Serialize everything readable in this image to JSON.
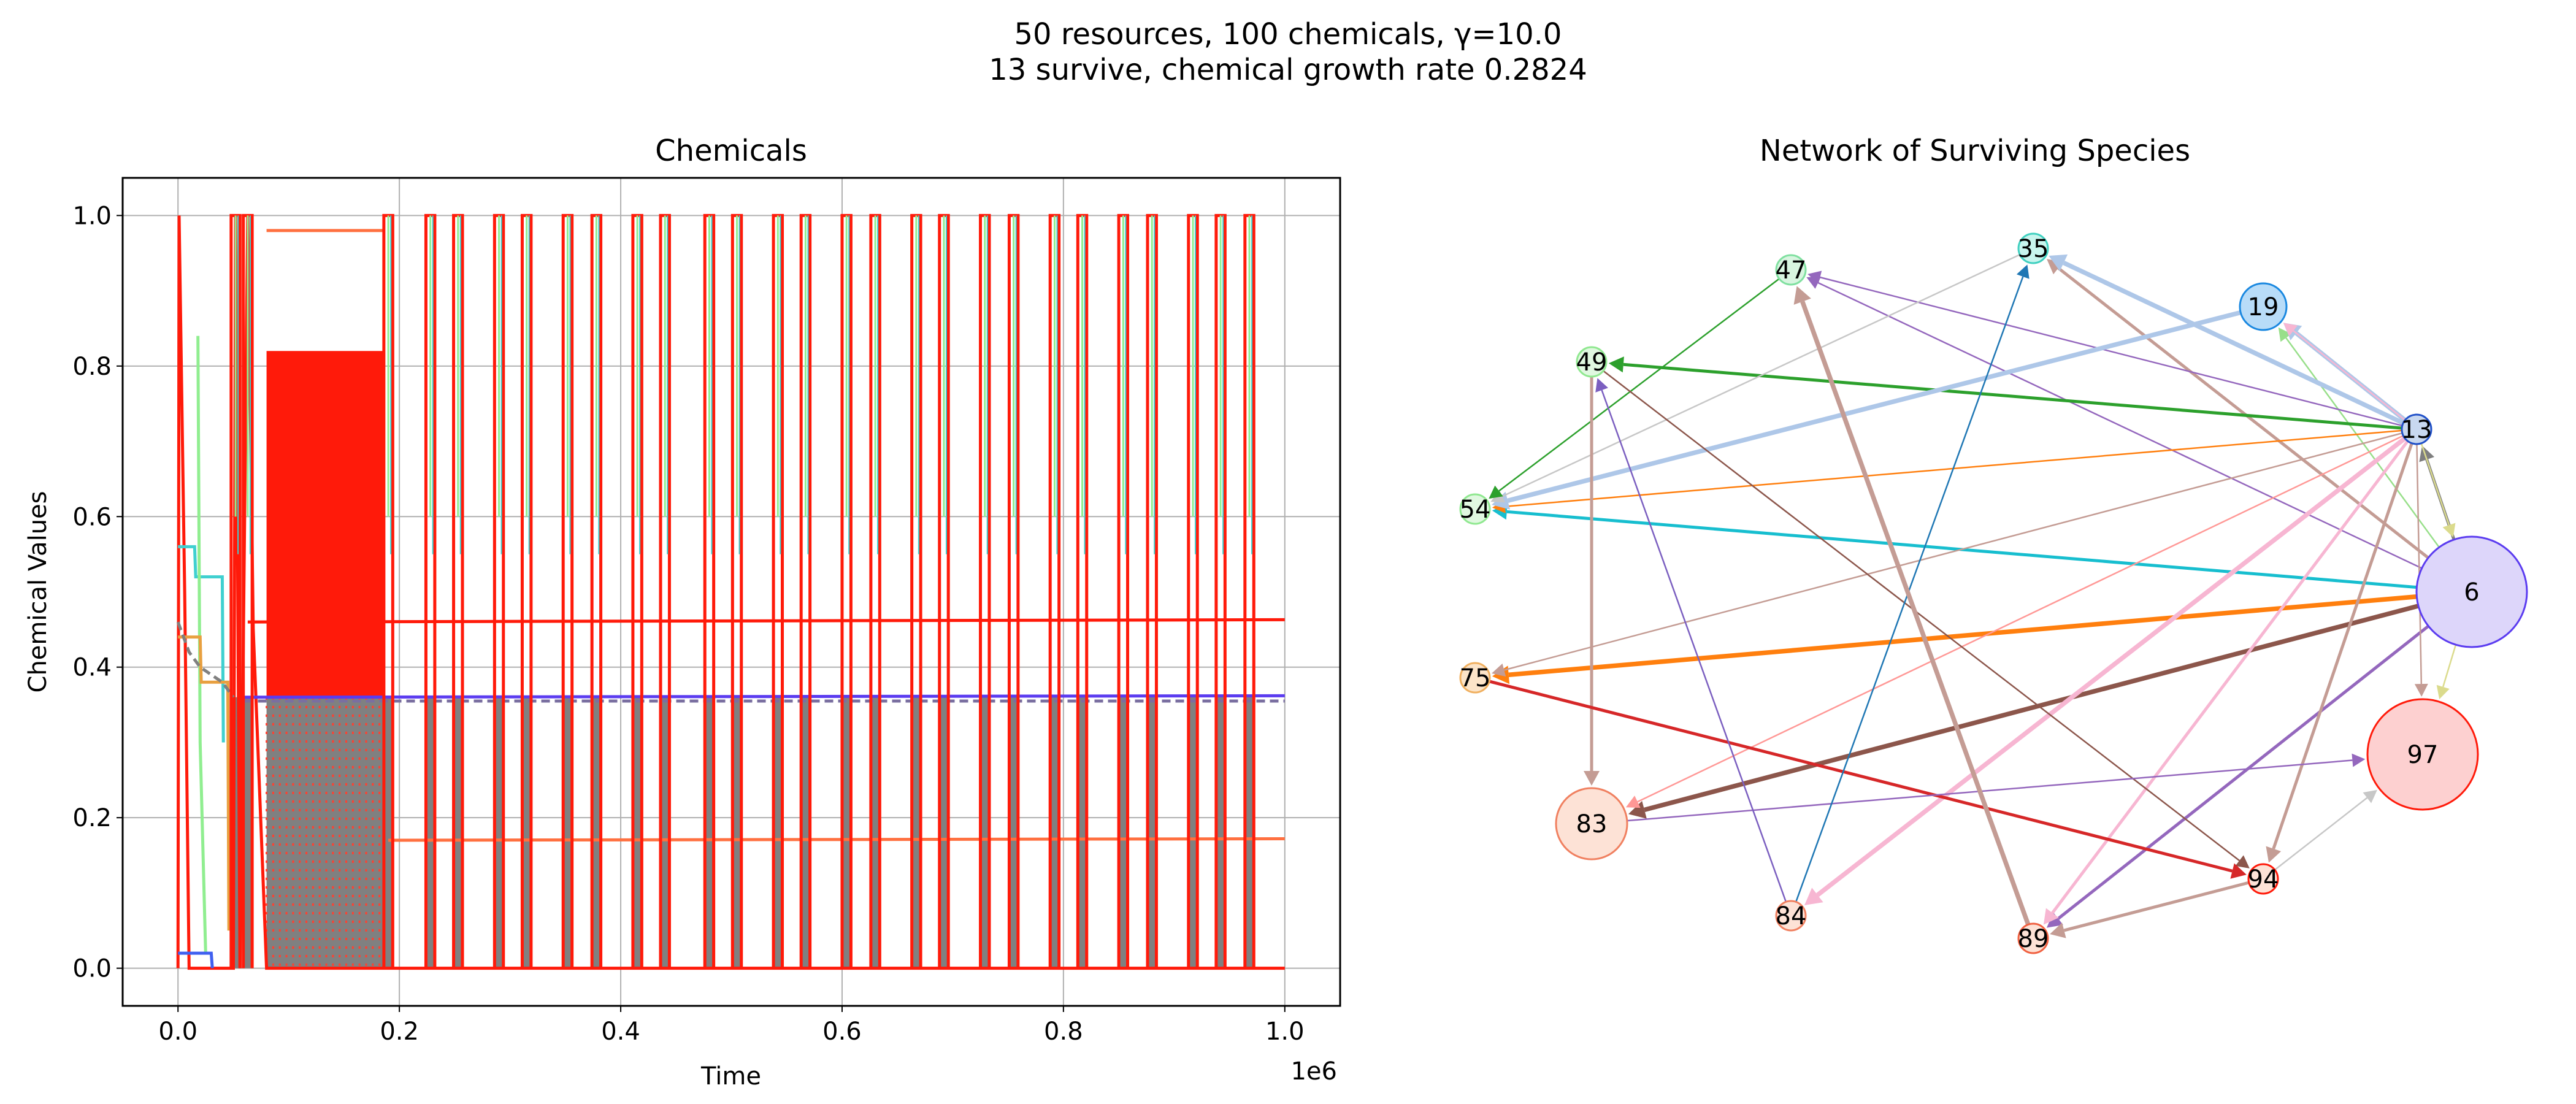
{
  "figure": {
    "title_line1": "50 resources, 100 chemicals, γ=10.0",
    "title_line2": "13 survive, chemical growth rate 0.2824"
  },
  "chart_data": [
    {
      "type": "line",
      "title": "Chemicals",
      "xlabel": "Time",
      "ylabel": "Chemical Values",
      "x_offset_label": "1e6",
      "xlim": [
        -0.05,
        1.05
      ],
      "ylim": [
        -0.05,
        1.05
      ],
      "x_ticks": [
        "0.0",
        "0.2",
        "0.4",
        "0.6",
        "0.8",
        "1.0"
      ],
      "y_ticks": [
        "0.0",
        "0.2",
        "0.4",
        "0.6",
        "0.8",
        "1.0"
      ],
      "grid": true,
      "oscillation": {
        "spike_times": [
          0.052,
          0.063,
          0.19,
          0.228,
          0.253,
          0.29,
          0.315,
          0.352,
          0.378,
          0.415,
          0.44,
          0.48,
          0.505,
          0.542,
          0.567,
          0.604,
          0.63,
          0.667,
          0.692,
          0.729,
          0.755,
          0.792,
          0.817,
          0.854,
          0.88,
          0.917,
          0.942,
          0.968
        ],
        "dense_band": [
          0.08,
          0.185
        ],
        "end": 0.98
      },
      "series": [
        {
          "color": "#ff1a0a",
          "style": "solid",
          "values": [
            [
              0.0,
              0.0
            ],
            [
              0.001,
              1.0
            ],
            [
              0.006,
              0.5
            ],
            [
              0.01,
              0.0
            ],
            [
              0.05,
              0.0
            ],
            [
              0.052,
              1.0
            ],
            [
              0.056,
              0.0
            ],
            [
              0.063,
              1.0
            ],
            [
              0.068,
              0.45
            ],
            [
              0.08,
              0.0
            ],
            [
              1.0,
              0.0
            ]
          ]
        },
        {
          "color": "#ff1a0a",
          "style": "solid",
          "values": [
            [
              0.063,
              0.46
            ],
            [
              1.0,
              0.463
            ]
          ]
        },
        {
          "color": "#5b3cf0",
          "style": "solid",
          "values": [
            [
              0.06,
              0.36
            ],
            [
              1.0,
              0.362
            ]
          ]
        },
        {
          "color": "#7a6fa0",
          "style": "dashed",
          "values": [
            [
              0.06,
              0.355
            ],
            [
              1.0,
              0.355
            ]
          ]
        },
        {
          "color": "#ff7040",
          "style": "solid",
          "values": [
            [
              0.19,
              0.17
            ],
            [
              1.0,
              0.172
            ]
          ]
        },
        {
          "color": "#ff7040",
          "style": "solid",
          "values": [
            [
              0.08,
              0.98
            ],
            [
              0.185,
              0.98
            ]
          ]
        },
        {
          "color": "#40d0d0",
          "style": "solid",
          "values": [
            [
              0.0,
              0.56
            ],
            [
              0.015,
              0.56
            ],
            [
              0.016,
              0.52
            ],
            [
              0.04,
              0.52
            ],
            [
              0.041,
              0.3
            ]
          ]
        },
        {
          "color": "#90ee90",
          "style": "solid",
          "values": [
            [
              0.018,
              0.84
            ],
            [
              0.02,
              0.3
            ],
            [
              0.025,
              0.02
            ]
          ]
        },
        {
          "color": "#e8a040",
          "style": "solid",
          "values": [
            [
              0.0,
              0.44
            ],
            [
              0.02,
              0.44
            ],
            [
              0.021,
              0.38
            ],
            [
              0.045,
              0.38
            ],
            [
              0.046,
              0.05
            ]
          ]
        },
        {
          "color": "#4060f0",
          "style": "solid",
          "values": [
            [
              0.0,
              0.02
            ],
            [
              0.03,
              0.02
            ],
            [
              0.031,
              0.0
            ]
          ]
        },
        {
          "color": "#808080",
          "style": "dashed",
          "values": [
            [
              0.0,
              0.46
            ],
            [
              0.01,
              0.42
            ],
            [
              0.02,
              0.4
            ],
            [
              0.04,
              0.38
            ],
            [
              0.05,
              0.36
            ]
          ]
        }
      ]
    },
    {
      "type": "network",
      "title": "Network of Surviving Species",
      "nodes": [
        {
          "id": "6",
          "label": "6",
          "fill": "#ddd6fa",
          "stroke": "#5b3cf0",
          "size": "large"
        },
        {
          "id": "13",
          "label": "13",
          "fill": "#c8d8f0",
          "stroke": "#2050c8",
          "size": "tiny"
        },
        {
          "id": "19",
          "label": "19",
          "fill": "#b8dcf8",
          "stroke": "#1a88e0",
          "size": "small"
        },
        {
          "id": "35",
          "label": "35",
          "fill": "#c8f5ee",
          "stroke": "#40d0c0",
          "size": "tiny"
        },
        {
          "id": "47",
          "label": "47",
          "fill": "#d8f5e0",
          "stroke": "#80e0a0",
          "size": "tiny"
        },
        {
          "id": "49",
          "label": "49",
          "fill": "#e0f8e0",
          "stroke": "#90e890",
          "size": "tiny"
        },
        {
          "id": "54",
          "label": "54",
          "fill": "#e0f8e0",
          "stroke": "#90e890",
          "size": "tiny"
        },
        {
          "id": "75",
          "label": "75",
          "fill": "#fce4c8",
          "stroke": "#f0b060",
          "size": "tiny"
        },
        {
          "id": "83",
          "label": "83",
          "fill": "#fde2d6",
          "stroke": "#f08060",
          "size": "medium"
        },
        {
          "id": "84",
          "label": "84",
          "fill": "#fde2d6",
          "stroke": "#f08060",
          "size": "tiny"
        },
        {
          "id": "89",
          "label": "89",
          "fill": "#fde2d6",
          "stroke": "#f06040",
          "size": "tiny"
        },
        {
          "id": "94",
          "label": "94",
          "fill": "#fde2d6",
          "stroke": "#ff1a0a",
          "size": "tiny"
        },
        {
          "id": "97",
          "label": "97",
          "fill": "#fdd0d0",
          "stroke": "#ff1a0a",
          "size": "large"
        }
      ],
      "edges": [
        {
          "from": "6",
          "to": "13",
          "color": "#7f7f7f",
          "weight": 2
        },
        {
          "from": "6",
          "to": "19",
          "color": "#98df8a",
          "weight": 1
        },
        {
          "from": "6",
          "to": "35",
          "color": "#c49c94",
          "weight": 2
        },
        {
          "from": "6",
          "to": "47",
          "color": "#9467bd",
          "weight": 1
        },
        {
          "from": "6",
          "to": "54",
          "color": "#17becf",
          "weight": 2
        },
        {
          "from": "6",
          "to": "75",
          "color": "#ff7f0e",
          "weight": 3
        },
        {
          "from": "6",
          "to": "83",
          "color": "#8c564b",
          "weight": 3
        },
        {
          "from": "6",
          "to": "89",
          "color": "#9467bd",
          "weight": 2
        },
        {
          "from": "6",
          "to": "97",
          "color": "#dbdb8d",
          "weight": 1
        },
        {
          "from": "13",
          "to": "6",
          "color": "#dbdb8d",
          "weight": 1
        },
        {
          "from": "13",
          "to": "19",
          "color": "#aec7e8",
          "weight": 3
        },
        {
          "from": "13",
          "to": "19",
          "color": "#f7b6d2",
          "weight": 1
        },
        {
          "from": "13",
          "to": "35",
          "color": "#aec7e8",
          "weight": 3
        },
        {
          "from": "13",
          "to": "47",
          "color": "#9467bd",
          "weight": 1
        },
        {
          "from": "13",
          "to": "49",
          "color": "#2ca02c",
          "weight": 2
        },
        {
          "from": "13",
          "to": "54",
          "color": "#ff7f0e",
          "weight": 1
        },
        {
          "from": "13",
          "to": "75",
          "color": "#c49c94",
          "weight": 1
        },
        {
          "from": "13",
          "to": "83",
          "color": "#ff9896",
          "weight": 1
        },
        {
          "from": "13",
          "to": "84",
          "color": "#c5b0d5",
          "weight": 1
        },
        {
          "from": "13",
          "to": "89",
          "color": "#f7b6d2",
          "weight": 2
        },
        {
          "from": "13",
          "to": "84",
          "color": "#f7b6d2",
          "weight": 3
        },
        {
          "from": "13",
          "to": "94",
          "color": "#c49c94",
          "weight": 2
        },
        {
          "from": "13",
          "to": "97",
          "color": "#c49c94",
          "weight": 1
        },
        {
          "from": "19",
          "to": "54",
          "color": "#aec7e8",
          "weight": 3
        },
        {
          "from": "35",
          "to": "54",
          "color": "#c7c7c7",
          "weight": 1
        },
        {
          "from": "47",
          "to": "54",
          "color": "#2ca02c",
          "weight": 1
        },
        {
          "from": "49",
          "to": "83",
          "color": "#c49c94",
          "weight": 2
        },
        {
          "from": "49",
          "to": "94",
          "color": "#8c564b",
          "weight": 1
        },
        {
          "from": "75",
          "to": "94",
          "color": "#d62728",
          "weight": 2
        },
        {
          "from": "83",
          "to": "97",
          "color": "#9467bd",
          "weight": 1
        },
        {
          "from": "84",
          "to": "35",
          "color": "#1f77b4",
          "weight": 1
        },
        {
          "from": "84",
          "to": "49",
          "color": "#7b5fc0",
          "weight": 1
        },
        {
          "from": "89",
          "to": "47",
          "color": "#c49c94",
          "weight": 3
        },
        {
          "from": "94",
          "to": "89",
          "color": "#c49c94",
          "weight": 2
        },
        {
          "from": "94",
          "to": "97",
          "color": "#c7c7c7",
          "weight": 1
        }
      ]
    }
  ]
}
